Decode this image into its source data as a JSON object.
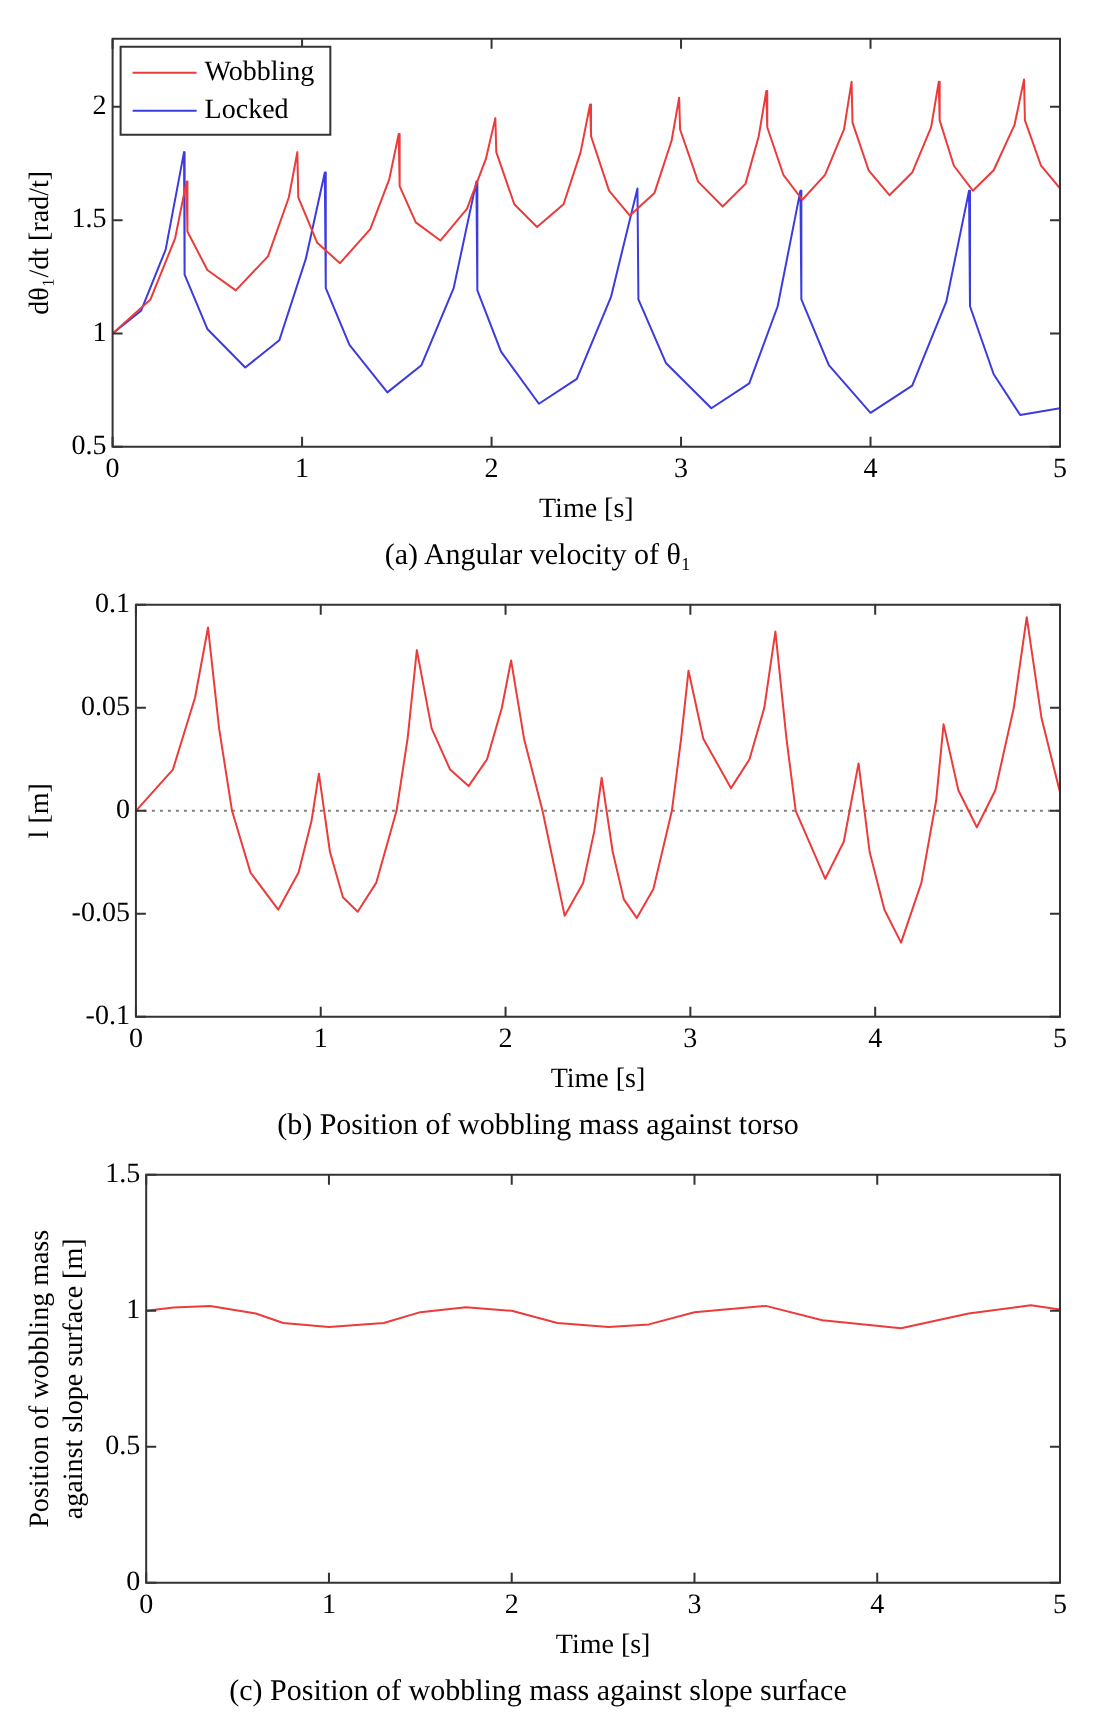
{
  "chart_data": [
    {
      "type": "line",
      "title": "(a) Angular velocity of θ₁",
      "xlabel": "Time [s]",
      "ylabel": "dθ₁/dt [rad/t]",
      "xlim": [
        0,
        5
      ],
      "xticks": [
        0,
        1,
        2,
        3,
        4,
        5
      ],
      "ylim": [
        0.5,
        2.3
      ],
      "yticks": [
        0.5,
        1,
        1.5,
        2
      ],
      "grid": false,
      "legend": "top left",
      "marker": "none",
      "line_style": "solid",
      "series": [
        {
          "name": "Wobbling",
          "color": "#ec3b3b",
          "x": [
            0,
            0.2,
            0.33,
            0.39,
            0.395,
            0.5,
            0.65,
            0.82,
            0.93,
            0.975,
            0.98,
            1.08,
            1.2,
            1.36,
            1.46,
            1.51,
            1.515,
            1.6,
            1.73,
            1.87,
            1.97,
            2.02,
            2.025,
            2.12,
            2.24,
            2.38,
            2.47,
            2.52,
            2.525,
            2.62,
            2.73,
            2.86,
            2.95,
            2.99,
            2.995,
            3.09,
            3.22,
            3.34,
            3.41,
            3.45,
            3.455,
            3.54,
            3.64,
            3.76,
            3.86,
            3.9,
            3.905,
            3.99,
            4.1,
            4.22,
            4.32,
            4.36,
            4.365,
            4.44,
            4.54,
            4.65,
            4.76,
            4.81,
            4.815,
            4.9,
            5
          ],
          "values": [
            1,
            1.15,
            1.42,
            1.67,
            1.45,
            1.28,
            1.19,
            1.34,
            1.6,
            1.8,
            1.6,
            1.4,
            1.31,
            1.46,
            1.68,
            1.88,
            1.65,
            1.49,
            1.41,
            1.55,
            1.77,
            1.95,
            1.8,
            1.57,
            1.47,
            1.57,
            1.8,
            2.01,
            1.87,
            1.63,
            1.52,
            1.62,
            1.85,
            2.04,
            1.9,
            1.67,
            1.56,
            1.66,
            1.87,
            2.07,
            1.91,
            1.7,
            1.59,
            1.7,
            1.9,
            2.11,
            1.93,
            1.72,
            1.61,
            1.71,
            1.91,
            2.11,
            1.94,
            1.74,
            1.63,
            1.72,
            1.92,
            2.12,
            1.94,
            1.74,
            1.64
          ]
        },
        {
          "name": "Locked",
          "color": "#3b3be0",
          "x": [
            0,
            0.15,
            0.28,
            0.377,
            0.38,
            0.5,
            0.7,
            0.88,
            1.02,
            1.12,
            1.125,
            1.25,
            1.45,
            1.63,
            1.8,
            1.92,
            1.925,
            2.05,
            2.25,
            2.45,
            2.63,
            2.77,
            2.775,
            2.92,
            3.16,
            3.36,
            3.51,
            3.63,
            3.635,
            3.78,
            4,
            4.22,
            4.4,
            4.52,
            4.525,
            4.65,
            4.79,
            5
          ],
          "values": [
            1,
            1.1,
            1.37,
            1.8,
            1.26,
            1.02,
            0.85,
            0.97,
            1.33,
            1.71,
            1.2,
            0.95,
            0.74,
            0.86,
            1.2,
            1.67,
            1.19,
            0.92,
            0.69,
            0.8,
            1.16,
            1.64,
            1.15,
            0.87,
            0.67,
            0.78,
            1.12,
            1.63,
            1.15,
            0.86,
            0.65,
            0.77,
            1.14,
            1.63,
            1.12,
            0.82,
            0.64,
            0.67
          ]
        }
      ]
    },
    {
      "type": "line",
      "title": "(b) Position of wobbling mass against torso",
      "xlabel": "Time [s]",
      "ylabel": "l [m]",
      "xlim": [
        0,
        5
      ],
      "xticks": [
        0,
        1,
        2,
        3,
        4,
        5
      ],
      "ylim": [
        -0.1,
        0.1
      ],
      "yticks": [
        -0.1,
        -0.05,
        0,
        0.05,
        0.1
      ],
      "grid": false,
      "marker": "none",
      "line_style": "solid",
      "ref_lines": [
        {
          "axis": "y",
          "value": 0,
          "color": "#808080",
          "line_style": "dotted"
        }
      ],
      "series": [
        {
          "color": "#ec3b3b",
          "x": [
            0,
            0.2,
            0.32,
            0.39,
            0.45,
            0.52,
            0.62,
            0.77,
            0.88,
            0.95,
            0.99,
            1.05,
            1.12,
            1.2,
            1.3,
            1.41,
            1.47,
            1.52,
            1.6,
            1.7,
            1.8,
            1.9,
            1.98,
            2.03,
            2.1,
            2.2,
            2.32,
            2.42,
            2.48,
            2.52,
            2.58,
            2.64,
            2.71,
            2.8,
            2.9,
            2.95,
            2.99,
            3.07,
            3.22,
            3.32,
            3.4,
            3.46,
            3.52,
            3.57,
            3.73,
            3.83,
            3.91,
            3.97,
            4.05,
            4.14,
            4.25,
            4.33,
            4.37,
            4.45,
            4.55,
            4.65,
            4.75,
            4.82,
            4.9,
            5
          ],
          "values": [
            0,
            0.02,
            0.055,
            0.089,
            0.04,
            0,
            -0.03,
            -0.048,
            -0.03,
            -0.005,
            0.018,
            -0.02,
            -0.042,
            -0.049,
            -0.035,
            0,
            0.035,
            0.078,
            0.04,
            0.02,
            0.012,
            0.025,
            0.05,
            0.073,
            0.035,
            0,
            -0.051,
            -0.035,
            -0.01,
            0.016,
            -0.02,
            -0.043,
            -0.052,
            -0.038,
            0,
            0.035,
            0.068,
            0.035,
            0.011,
            0.025,
            0.05,
            0.087,
            0.035,
            0,
            -0.033,
            -0.015,
            0.023,
            -0.02,
            -0.048,
            -0.064,
            -0.035,
            0.005,
            0.042,
            0.01,
            -0.008,
            0.01,
            0.05,
            0.094,
            0.045,
            0.009
          ]
        }
      ]
    },
    {
      "type": "line",
      "title": "(c) Position of wobbling mass against slope surface",
      "xlabel": "Time [s]",
      "ylabel": "Position of wobbling mass against slope surface [m]",
      "xlim": [
        0,
        5
      ],
      "xticks": [
        0,
        1,
        2,
        3,
        4,
        5
      ],
      "ylim": [
        0,
        1.5
      ],
      "yticks": [
        0,
        0.5,
        1,
        1.5
      ],
      "grid": false,
      "marker": "none",
      "line_style": "solid",
      "series": [
        {
          "color": "#ec3b3b",
          "x": [
            0,
            0.15,
            0.35,
            0.6,
            0.75,
            1,
            1.3,
            1.5,
            1.75,
            2,
            2.25,
            2.53,
            2.75,
            3,
            3.39,
            3.7,
            4.13,
            4.5,
            4.84,
            5
          ],
          "values": [
            1,
            1.012,
            1.018,
            0.99,
            0.955,
            0.94,
            0.955,
            0.995,
            1.013,
            1,
            0.955,
            0.94,
            0.95,
            0.995,
            1.018,
            0.965,
            0.936,
            0.99,
            1.02,
            1.005
          ]
        }
      ]
    }
  ]
}
